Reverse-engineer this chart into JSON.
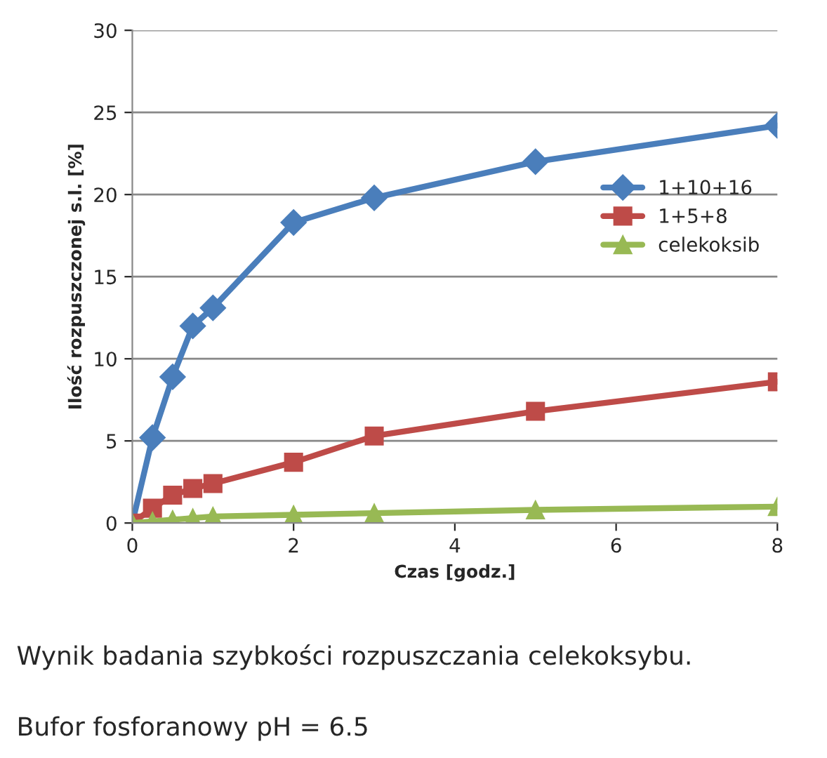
{
  "chart_data": {
    "type": "line",
    "xlabel": "Czas [godz.]",
    "ylabel": "Ilość rozpuszczonej s.l. [%]",
    "x": [
      0,
      0.25,
      0.5,
      0.75,
      1,
      2,
      3,
      5,
      8
    ],
    "series": [
      {
        "name": "1+10+16",
        "color": "#4a7ebb",
        "marker": "diamond",
        "values": [
          0,
          5.2,
          8.9,
          12.0,
          13.1,
          18.3,
          19.8,
          22.0,
          24.2
        ]
      },
      {
        "name": "1+5+8",
        "color": "#be4b48",
        "marker": "square",
        "values": [
          0,
          0.9,
          1.7,
          2.1,
          2.4,
          3.7,
          5.3,
          6.8,
          8.6
        ]
      },
      {
        "name": "celekoksib",
        "color": "#98b954",
        "marker": "triangle",
        "values": [
          0,
          0.1,
          0.2,
          0.3,
          0.4,
          0.5,
          0.6,
          0.8,
          1.0
        ]
      }
    ],
    "xlim": [
      0,
      8
    ],
    "xticks": [
      0,
      2,
      4,
      6,
      8
    ],
    "ylim": [
      0,
      30
    ],
    "yticks": [
      0,
      5,
      10,
      15,
      20,
      25,
      30
    ],
    "grid": "y",
    "legend": "right",
    "annotations": [
      "Wynik badania szybkości rozpuszczania celekoksybu.",
      "Bufor fosforanowy pH = 6.5"
    ]
  }
}
